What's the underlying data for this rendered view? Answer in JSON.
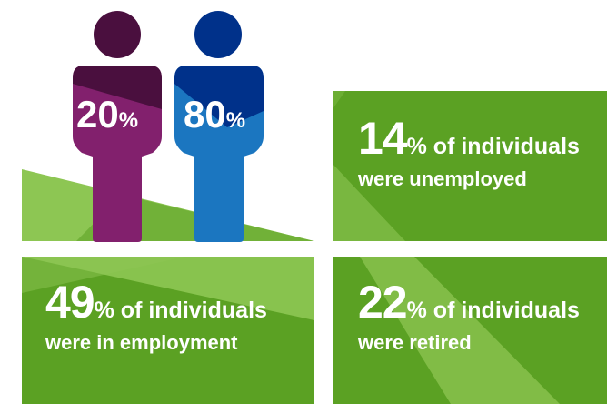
{
  "colors": {
    "green": "#5ba123",
    "light_green": "#8dc653",
    "purple": "#82206d",
    "purple_dark": "#4a0f3e",
    "blue": "#1b76c0",
    "blue_dark": "#00318a"
  },
  "figures": {
    "female": {
      "value": "20",
      "unit": "%",
      "icon": "person-icon",
      "color": "purple"
    },
    "male": {
      "value": "80",
      "unit": "%",
      "icon": "person-icon",
      "color": "blue"
    }
  },
  "stats": {
    "unemployed": {
      "value": "14",
      "rest": "% of individuals",
      "line2": "were unemployed"
    },
    "employment": {
      "value": "49",
      "rest": "% of individuals",
      "line2": "were in employment"
    },
    "retired": {
      "value": "22",
      "rest": "% of individuals",
      "line2": "were retired"
    }
  }
}
